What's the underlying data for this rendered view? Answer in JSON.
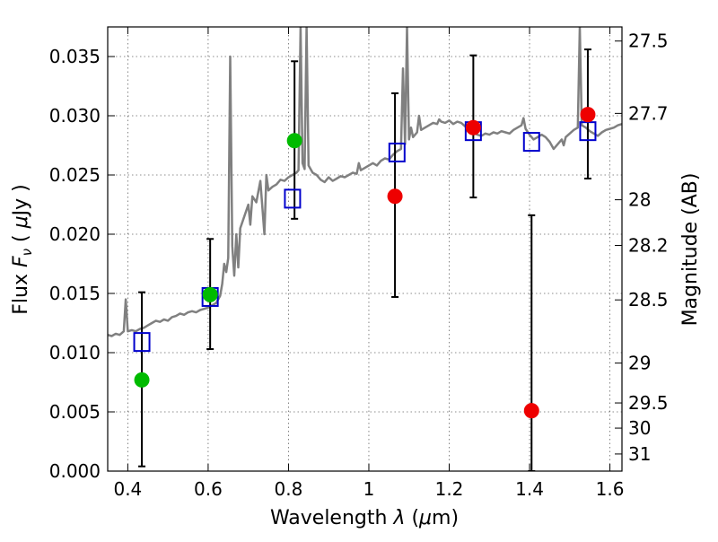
{
  "chart_data": {
    "type": "scatter",
    "xlabel": {
      "main": "Wavelength  ",
      "lam": "λ",
      "unit": " (",
      "mu": "μ",
      "m": "m)"
    },
    "ylabel": {
      "main": "Flux  ",
      "F": "F",
      "sub": "ν",
      "open": "  ( ",
      "mu": "μ",
      "unit": "Jy )"
    },
    "y2label": "Magnitude (AB)",
    "xlim": [
      0.35,
      1.63
    ],
    "ylim": [
      0.0,
      0.0375
    ],
    "grid": true,
    "xticks": [
      {
        "v": 0.4,
        "label": "0.4"
      },
      {
        "v": 0.6,
        "label": "0.6"
      },
      {
        "v": 0.8,
        "label": "0.8"
      },
      {
        "v": 1.0,
        "label": "1"
      },
      {
        "v": 1.2,
        "label": "1.2"
      },
      {
        "v": 1.4,
        "label": "1.4"
      },
      {
        "v": 1.6,
        "label": "1.6"
      }
    ],
    "yticks": [
      {
        "v": 0.0,
        "label": "0.000"
      },
      {
        "v": 0.005,
        "label": "0.005"
      },
      {
        "v": 0.01,
        "label": "0.010"
      },
      {
        "v": 0.015,
        "label": "0.015"
      },
      {
        "v": 0.02,
        "label": "0.020"
      },
      {
        "v": 0.025,
        "label": "0.025"
      },
      {
        "v": 0.03,
        "label": "0.030"
      },
      {
        "v": 0.035,
        "label": "0.035"
      }
    ],
    "y2ticks": [
      {
        "mag": 27.5,
        "label": "27.5"
      },
      {
        "mag": 27.7,
        "label": "27.7"
      },
      {
        "mag": 28,
        "label": "28"
      },
      {
        "mag": 28.2,
        "label": "28.2"
      },
      {
        "mag": 28.5,
        "label": "28.5"
      },
      {
        "mag": 29,
        "label": "29"
      },
      {
        "mag": 29.5,
        "label": "29.5"
      },
      {
        "mag": 30,
        "label": "30"
      },
      {
        "mag": 31,
        "label": "31"
      }
    ],
    "model_spectrum": {
      "color": "#808080",
      "points": [
        [
          0.35,
          0.0115
        ],
        [
          0.36,
          0.0114
        ],
        [
          0.37,
          0.0116
        ],
        [
          0.38,
          0.0115
        ],
        [
          0.39,
          0.0118
        ],
        [
          0.395,
          0.0145
        ],
        [
          0.4,
          0.0118
        ],
        [
          0.41,
          0.0119
        ],
        [
          0.42,
          0.0118
        ],
        [
          0.43,
          0.012
        ],
        [
          0.44,
          0.0121
        ],
        [
          0.45,
          0.0123
        ],
        [
          0.46,
          0.0125
        ],
        [
          0.47,
          0.0127
        ],
        [
          0.48,
          0.0126
        ],
        [
          0.49,
          0.0128
        ],
        [
          0.5,
          0.0127
        ],
        [
          0.51,
          0.013
        ],
        [
          0.52,
          0.0131
        ],
        [
          0.53,
          0.0133
        ],
        [
          0.54,
          0.0132
        ],
        [
          0.55,
          0.0134
        ],
        [
          0.56,
          0.0135
        ],
        [
          0.57,
          0.0134
        ],
        [
          0.58,
          0.0136
        ],
        [
          0.59,
          0.0137
        ],
        [
          0.6,
          0.0138
        ],
        [
          0.61,
          0.014
        ],
        [
          0.62,
          0.0142
        ],
        [
          0.63,
          0.0148
        ],
        [
          0.635,
          0.0158
        ],
        [
          0.64,
          0.0175
        ],
        [
          0.645,
          0.0168
        ],
        [
          0.65,
          0.018
        ],
        [
          0.655,
          0.035
        ],
        [
          0.66,
          0.019
        ],
        [
          0.665,
          0.0165
        ],
        [
          0.67,
          0.02
        ],
        [
          0.675,
          0.0172
        ],
        [
          0.68,
          0.0205
        ],
        [
          0.69,
          0.0215
        ],
        [
          0.7,
          0.0225
        ],
        [
          0.705,
          0.0208
        ],
        [
          0.71,
          0.0232
        ],
        [
          0.72,
          0.0227
        ],
        [
          0.73,
          0.0245
        ],
        [
          0.74,
          0.02
        ],
        [
          0.745,
          0.025
        ],
        [
          0.75,
          0.0237
        ],
        [
          0.76,
          0.024
        ],
        [
          0.77,
          0.0242
        ],
        [
          0.78,
          0.0246
        ],
        [
          0.79,
          0.0245
        ],
        [
          0.8,
          0.0248
        ],
        [
          0.81,
          0.025
        ],
        [
          0.82,
          0.0252
        ],
        [
          0.825,
          0.0254
        ],
        [
          0.83,
          0.0375
        ],
        [
          0.835,
          0.026
        ],
        [
          0.84,
          0.0255
        ],
        [
          0.845,
          0.0375
        ],
        [
          0.85,
          0.0258
        ],
        [
          0.86,
          0.0252
        ],
        [
          0.87,
          0.025
        ],
        [
          0.88,
          0.0246
        ],
        [
          0.89,
          0.0244
        ],
        [
          0.9,
          0.0248
        ],
        [
          0.91,
          0.0245
        ],
        [
          0.92,
          0.0247
        ],
        [
          0.93,
          0.0249
        ],
        [
          0.94,
          0.0248
        ],
        [
          0.95,
          0.025
        ],
        [
          0.96,
          0.0252
        ],
        [
          0.97,
          0.0251
        ],
        [
          0.975,
          0.026
        ],
        [
          0.98,
          0.0254
        ],
        [
          0.99,
          0.0256
        ],
        [
          1.0,
          0.0258
        ],
        [
          1.01,
          0.026
        ],
        [
          1.02,
          0.0258
        ],
        [
          1.03,
          0.0262
        ],
        [
          1.04,
          0.0264
        ],
        [
          1.05,
          0.0263
        ],
        [
          1.06,
          0.0267
        ],
        [
          1.07,
          0.027
        ],
        [
          1.08,
          0.0272
        ],
        [
          1.085,
          0.034
        ],
        [
          1.09,
          0.0276
        ],
        [
          1.095,
          0.0375
        ],
        [
          1.1,
          0.028
        ],
        [
          1.105,
          0.029
        ],
        [
          1.11,
          0.0282
        ],
        [
          1.12,
          0.0286
        ],
        [
          1.125,
          0.03
        ],
        [
          1.13,
          0.0288
        ],
        [
          1.14,
          0.029
        ],
        [
          1.15,
          0.0292
        ],
        [
          1.16,
          0.0294
        ],
        [
          1.17,
          0.0293
        ],
        [
          1.175,
          0.0297
        ],
        [
          1.18,
          0.0295
        ],
        [
          1.19,
          0.0294
        ],
        [
          1.2,
          0.0296
        ],
        [
          1.21,
          0.0293
        ],
        [
          1.22,
          0.0295
        ],
        [
          1.23,
          0.0294
        ],
        [
          1.24,
          0.0291
        ],
        [
          1.25,
          0.0288
        ],
        [
          1.26,
          0.0286
        ],
        [
          1.27,
          0.0284
        ],
        [
          1.28,
          0.0283
        ],
        [
          1.29,
          0.0285
        ],
        [
          1.3,
          0.0284
        ],
        [
          1.31,
          0.0286
        ],
        [
          1.32,
          0.0285
        ],
        [
          1.33,
          0.0287
        ],
        [
          1.34,
          0.0286
        ],
        [
          1.35,
          0.0285
        ],
        [
          1.36,
          0.0288
        ],
        [
          1.37,
          0.029
        ],
        [
          1.38,
          0.0292
        ],
        [
          1.385,
          0.0298
        ],
        [
          1.39,
          0.0289
        ],
        [
          1.4,
          0.0284
        ],
        [
          1.41,
          0.028
        ],
        [
          1.42,
          0.0282
        ],
        [
          1.43,
          0.0284
        ],
        [
          1.44,
          0.0282
        ],
        [
          1.45,
          0.0278
        ],
        [
          1.46,
          0.0272
        ],
        [
          1.47,
          0.0276
        ],
        [
          1.48,
          0.028
        ],
        [
          1.485,
          0.0275
        ],
        [
          1.49,
          0.0282
        ],
        [
          1.5,
          0.0285
        ],
        [
          1.51,
          0.0288
        ],
        [
          1.52,
          0.029
        ],
        [
          1.525,
          0.0375
        ],
        [
          1.53,
          0.0292
        ],
        [
          1.54,
          0.029
        ],
        [
          1.55,
          0.0287
        ],
        [
          1.56,
          0.0285
        ],
        [
          1.57,
          0.0283
        ],
        [
          1.58,
          0.0286
        ],
        [
          1.59,
          0.0288
        ],
        [
          1.6,
          0.0289
        ],
        [
          1.61,
          0.029
        ],
        [
          1.62,
          0.0292
        ],
        [
          1.63,
          0.0293
        ]
      ]
    },
    "series": [
      {
        "marker": "square",
        "color": "#0000cc",
        "points": [
          [
            0.435,
            0.0109
          ],
          [
            0.605,
            0.0147
          ],
          [
            0.81,
            0.023
          ],
          [
            1.07,
            0.0269
          ],
          [
            1.26,
            0.0287
          ],
          [
            1.405,
            0.0278
          ],
          [
            1.545,
            0.0287
          ]
        ]
      },
      {
        "marker": "circle",
        "color": "#00bb00",
        "points": [
          [
            0.435,
            0.0077
          ],
          [
            0.605,
            0.0149
          ],
          [
            0.815,
            0.0279
          ]
        ]
      },
      {
        "marker": "circle",
        "color": "#ee0000",
        "points": [
          [
            1.065,
            0.0232
          ],
          [
            1.26,
            0.029
          ],
          [
            1.405,
            0.0051
          ],
          [
            1.545,
            0.0301
          ]
        ]
      }
    ],
    "errorbars": [
      {
        "x": 0.435,
        "lo": 0.0004,
        "hi": 0.0151
      },
      {
        "x": 0.605,
        "lo": 0.0103,
        "hi": 0.0196
      },
      {
        "x": 0.815,
        "lo": 0.0213,
        "hi": 0.0346
      },
      {
        "x": 1.065,
        "lo": 0.0147,
        "hi": 0.0319
      },
      {
        "x": 1.26,
        "lo": 0.0231,
        "hi": 0.0351
      },
      {
        "x": 1.405,
        "lo": 0.0,
        "hi": 0.0216
      },
      {
        "x": 1.545,
        "lo": 0.0247,
        "hi": 0.0356
      }
    ]
  }
}
